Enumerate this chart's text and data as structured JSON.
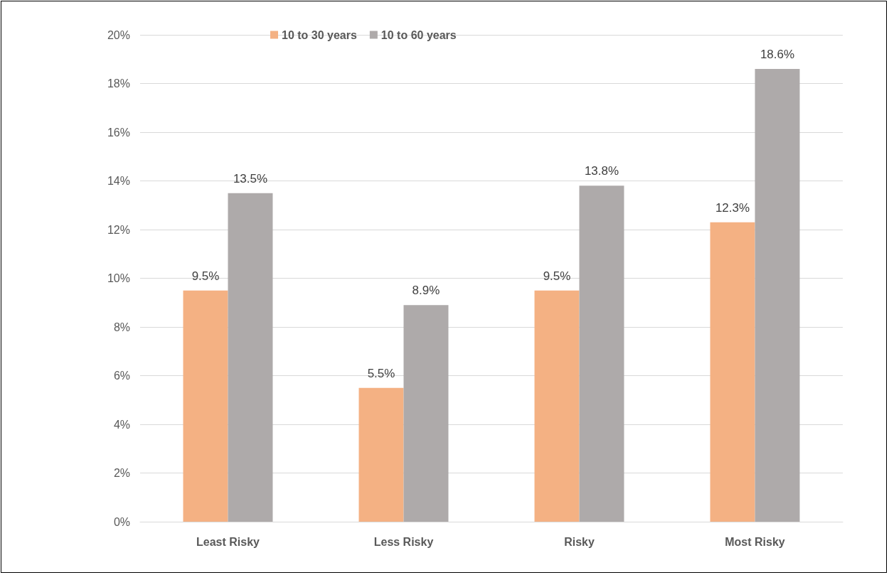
{
  "chart_data": {
    "type": "bar",
    "categories": [
      "Least Risky",
      "Less Risky",
      "Risky",
      "Most Risky"
    ],
    "series": [
      {
        "name": "10 to 30 years",
        "color": "#f4b183",
        "values": [
          9.5,
          5.5,
          9.5,
          12.3
        ],
        "value_labels": [
          "9.5%",
          "5.5%",
          "9.5%",
          "12.3%"
        ]
      },
      {
        "name": "10 to 60 years",
        "color": "#aeaaaa",
        "values": [
          13.5,
          8.9,
          13.8,
          18.6
        ],
        "value_labels": [
          "13.5%",
          "8.9%",
          "13.8%",
          "18.6%"
        ]
      }
    ],
    "ylim": [
      0,
      20
    ],
    "yticks": [
      {
        "value": 0,
        "label": "0%"
      },
      {
        "value": 2,
        "label": "2%"
      },
      {
        "value": 4,
        "label": "4%"
      },
      {
        "value": 6,
        "label": "6%"
      },
      {
        "value": 8,
        "label": "8%"
      },
      {
        "value": 10,
        "label": "10%"
      },
      {
        "value": 12,
        "label": "12%"
      },
      {
        "value": 14,
        "label": "14%"
      },
      {
        "value": 16,
        "label": "16%"
      },
      {
        "value": 18,
        "label": "18%"
      },
      {
        "value": 20,
        "label": "20%"
      }
    ],
    "grid": "y",
    "legend": "top"
  }
}
